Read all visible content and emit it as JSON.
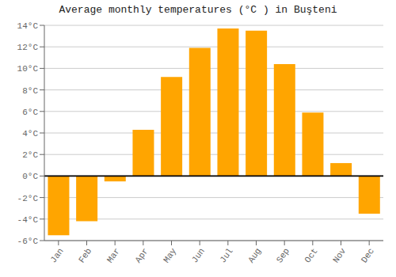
{
  "chart_data": {
    "type": "bar",
    "title": "Average monthly temperatures (°C ) in Buşteni",
    "categories": [
      "Jan",
      "Feb",
      "Mar",
      "Apr",
      "May",
      "Jun",
      "Jul",
      "Aug",
      "Sep",
      "Oct",
      "Nov",
      "Dec"
    ],
    "values": [
      -5.5,
      -4.2,
      -0.5,
      4.3,
      9.2,
      11.9,
      13.7,
      13.5,
      10.4,
      5.9,
      1.2,
      -3.5
    ],
    "color": "#FFA500",
    "ylim": [
      -6,
      14
    ],
    "yticks": [
      {
        "value": -6,
        "label": "-6°C"
      },
      {
        "value": -4,
        "label": "-4°C"
      },
      {
        "value": -2,
        "label": "-2°C"
      },
      {
        "value": 0,
        "label": "0°C"
      },
      {
        "value": 2,
        "label": "2°C"
      },
      {
        "value": 4,
        "label": "4°C"
      },
      {
        "value": 6,
        "label": "6°C"
      },
      {
        "value": 8,
        "label": "8°C"
      },
      {
        "value": 10,
        "label": "10°C"
      },
      {
        "value": 12,
        "label": "12°C"
      },
      {
        "value": 14,
        "label": "14°C"
      }
    ],
    "grid": true
  }
}
